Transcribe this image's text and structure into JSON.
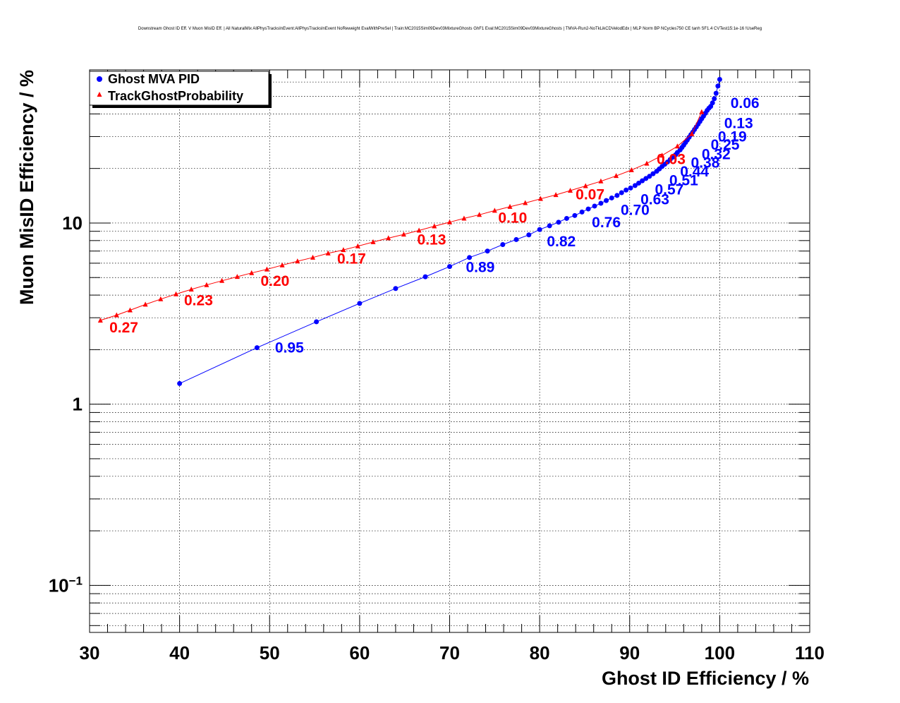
{
  "title": "Downstream Ghost ID Eff. V Muon MisID Eff. | All NaturalMix AllPhysTracksInEvent:AllPhysTracksInEvent NoReweight EvalWithPreSel | Train:MC2015Sim09Dev03MixtureGhosts GhF1 Eval:MC2015Sim09Dev03MixtureGhosts | TMVA-Run2-NoTkLikCDVelodEdx | MLP Norm BP NCycles750 CE tanh SF1.4 CVTest15:1e-16 !UseReg",
  "chart_data": {
    "type": "line",
    "title": "Downstream Ghost ID Eff. V Muon MisID Eff. | All NaturalMix AllPhysTracksInEvent:AllPhysTracksInEvent NoReweight EvalWithPreSel | Train:MC2015Sim09Dev03MixtureGhosts GhF1 Eval:MC2015Sim09Dev03MixtureGhosts | TMVA-Run2-NoTkLikCDVelodEdx | MLP Norm BP NCycles750 CE tanh SF1.4 CVTest15:1e-16 !UseReg",
    "xlabel": "Ghost ID Efficiency / %",
    "ylabel": "Muon MisID Efficiency / %",
    "xlim": [
      30,
      110
    ],
    "ylim": [
      0.055,
      70
    ],
    "yscale": "log",
    "grid": true,
    "legend_position": "top-left",
    "x_ticks": [
      "30",
      "40",
      "50",
      "60",
      "70",
      "80",
      "90",
      "100",
      "110"
    ],
    "y_ticks": [
      {
        "value": 0.1,
        "base": "10",
        "exp": "−1"
      },
      {
        "value": 1,
        "base": "1",
        "exp": ""
      },
      {
        "value": 10,
        "base": "10",
        "exp": ""
      }
    ],
    "series": [
      {
        "name": "Ghost MVA PID",
        "color": "#0000ff",
        "marker": "circle",
        "x": [
          40.0,
          48.6,
          55.2,
          60.0,
          64.0,
          67.3,
          70.0,
          72.2,
          74.2,
          75.9,
          77.4,
          78.8,
          80.0,
          81.1,
          82.1,
          83.0,
          83.9,
          84.7,
          85.4,
          86.1,
          86.8,
          87.4,
          88.0,
          88.6,
          89.1,
          89.6,
          90.1,
          90.6,
          91.0,
          91.4,
          91.8,
          92.2,
          92.6,
          93.0,
          93.3,
          93.6,
          93.9,
          94.2,
          94.5,
          94.8,
          95.1,
          95.3,
          95.6,
          95.8,
          96.0,
          96.2,
          96.4,
          96.6,
          96.8,
          97.0,
          97.2,
          97.4,
          97.6,
          97.8,
          98.0,
          98.2,
          98.4,
          98.6,
          98.8,
          99.0,
          99.2,
          99.4,
          99.6,
          99.8,
          100.0
        ],
        "y": [
          1.3,
          2.05,
          2.85,
          3.6,
          4.35,
          5.05,
          5.75,
          6.45,
          7.0,
          7.6,
          8.1,
          8.6,
          9.2,
          9.65,
          10.1,
          10.6,
          11.0,
          11.5,
          11.95,
          12.4,
          12.85,
          13.3,
          13.75,
          14.2,
          14.7,
          15.2,
          15.6,
          16.1,
          16.6,
          17.1,
          17.6,
          18.1,
          18.7,
          19.3,
          19.9,
          20.5,
          21.1,
          21.7,
          22.4,
          23.1,
          23.8,
          24.5,
          25.3,
          26.1,
          26.9,
          27.8,
          28.7,
          29.7,
          30.7,
          31.7,
          32.8,
          33.9,
          35.1,
          36.3,
          37.6,
          38.9,
          40.3,
          41.8,
          43.0,
          44.0,
          46.0,
          48.5,
          52.0,
          57.0,
          62.0
        ],
        "labels": [
          {
            "text": "0.06",
            "x": 101.2,
            "y": 46
          },
          {
            "text": "0.13",
            "x": 100.5,
            "y": 35.5
          },
          {
            "text": "0.19",
            "x": 99.8,
            "y": 30
          },
          {
            "text": "0.25",
            "x": 99.0,
            "y": 27
          },
          {
            "text": "0.32",
            "x": 98.0,
            "y": 24
          },
          {
            "text": "0.38",
            "x": 96.8,
            "y": 21.5
          },
          {
            "text": "0.44",
            "x": 95.6,
            "y": 19.2
          },
          {
            "text": "0.51",
            "x": 94.4,
            "y": 17.2
          },
          {
            "text": "0.57",
            "x": 92.8,
            "y": 15.3
          },
          {
            "text": "0.63",
            "x": 91.2,
            "y": 13.5
          },
          {
            "text": "0.70",
            "x": 89.0,
            "y": 11.8
          },
          {
            "text": "0.76",
            "x": 85.8,
            "y": 10.1
          },
          {
            "text": "0.82",
            "x": 80.8,
            "y": 7.9
          },
          {
            "text": "0.89",
            "x": 71.8,
            "y": 5.7
          },
          {
            "text": "0.95",
            "x": 50.6,
            "y": 2.05
          }
        ]
      },
      {
        "name": "TrackGhostProbability",
        "color": "#ff0000",
        "marker": "triangle",
        "x": [
          31.2,
          33.0,
          34.5,
          36.2,
          37.9,
          39.6,
          41.3,
          43.0,
          44.7,
          46.4,
          48.0,
          49.7,
          51.4,
          53.1,
          54.8,
          56.5,
          58.2,
          59.8,
          61.5,
          63.2,
          64.9,
          66.6,
          68.3,
          70.0,
          71.6,
          73.3,
          75.0,
          76.7,
          78.4,
          80.1,
          81.8,
          83.4,
          85.1,
          86.8,
          88.5,
          90.2,
          91.9,
          93.6,
          95.3,
          96.9,
          98.0
        ],
        "y": [
          2.9,
          3.1,
          3.3,
          3.55,
          3.8,
          4.05,
          4.3,
          4.55,
          4.8,
          5.05,
          5.3,
          5.55,
          5.85,
          6.15,
          6.45,
          6.8,
          7.1,
          7.45,
          7.85,
          8.25,
          8.65,
          9.1,
          9.6,
          10.1,
          10.6,
          11.1,
          11.7,
          12.3,
          12.9,
          13.6,
          14.3,
          15.1,
          16.0,
          17.0,
          18.2,
          19.6,
          21.3,
          23.6,
          26.5,
          31.0,
          41.0
        ],
        "labels": [
          {
            "text": "0.03",
            "x": 93.0,
            "y": 22.5
          },
          {
            "text": "0.07",
            "x": 84.0,
            "y": 14.4
          },
          {
            "text": "0.10",
            "x": 75.4,
            "y": 10.7
          },
          {
            "text": "0.13",
            "x": 66.4,
            "y": 8.1
          },
          {
            "text": "0.17",
            "x": 57.5,
            "y": 6.35
          },
          {
            "text": "0.20",
            "x": 49.0,
            "y": 4.8
          },
          {
            "text": "0.23",
            "x": 40.5,
            "y": 3.75
          },
          {
            "text": "0.27",
            "x": 32.2,
            "y": 2.65
          }
        ]
      }
    ]
  }
}
